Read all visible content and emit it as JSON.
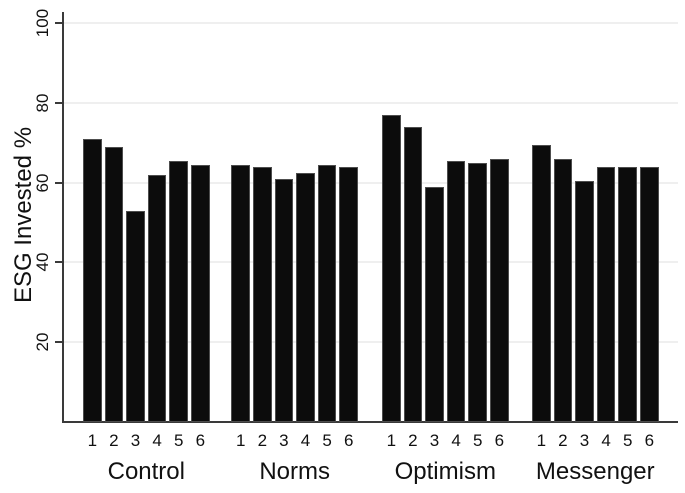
{
  "figure": {
    "background_color": "#ffffff",
    "axis_color": "#3a3a3a",
    "gridline_color": "#efefef",
    "text_color": "#111111"
  },
  "chart_data": {
    "type": "bar",
    "title": "",
    "xlabel": "",
    "ylabel": "ESG Invested %",
    "ylim": [
      0,
      100
    ],
    "yticks": [
      "20",
      "40",
      "60",
      "80",
      "100"
    ],
    "ytick_values": [
      20,
      40,
      60,
      80,
      100
    ],
    "grid": true,
    "legend": "none",
    "bar_color": "#0c0c0c",
    "bar_tick_labels": [
      "1",
      "2",
      "3",
      "4",
      "5",
      "6"
    ],
    "categories": [
      "Control",
      "Norms",
      "Optimism",
      "Messenger"
    ],
    "groups": [
      {
        "label": "Control",
        "values": [
          71,
          69,
          53,
          62,
          65.5,
          64.5
        ]
      },
      {
        "label": "Norms",
        "values": [
          64.5,
          64,
          61,
          62.5,
          64.5,
          64
        ]
      },
      {
        "label": "Optimism",
        "values": [
          77,
          74,
          59,
          65.5,
          65,
          66
        ]
      },
      {
        "label": "Messenger",
        "values": [
          69.5,
          66,
          60.5,
          64,
          64,
          64
        ]
      }
    ]
  }
}
